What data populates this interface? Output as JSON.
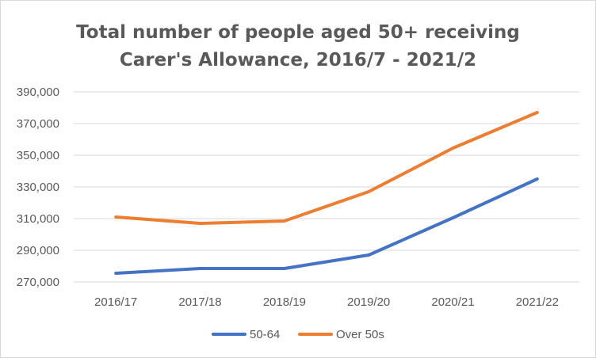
{
  "chart_data": {
    "type": "line",
    "title_lines": [
      "Total number of people aged 50+ receiving",
      "Carer's Allowance, 2016/7 - 2021/2"
    ],
    "categories": [
      "2016/17",
      "2017/18",
      "2018/19",
      "2019/20",
      "2020/21",
      "2021/22"
    ],
    "y_ticks": [
      "270,000",
      "290,000",
      "310,000",
      "330,000",
      "350,000",
      "370,000",
      "390,000"
    ],
    "ylim": [
      270000,
      390000
    ],
    "ytick_step": 20000,
    "xlabel": "",
    "ylabel": "",
    "grid": true,
    "legend_position": "bottom",
    "series": [
      {
        "name": "50-64",
        "color": "#4472c4",
        "values": [
          275500,
          278500,
          278500,
          287000,
          310500,
          335000
        ]
      },
      {
        "name": "Over 50s",
        "color": "#ed7d31",
        "values": [
          311000,
          307000,
          308500,
          327000,
          354500,
          377000
        ]
      }
    ]
  }
}
